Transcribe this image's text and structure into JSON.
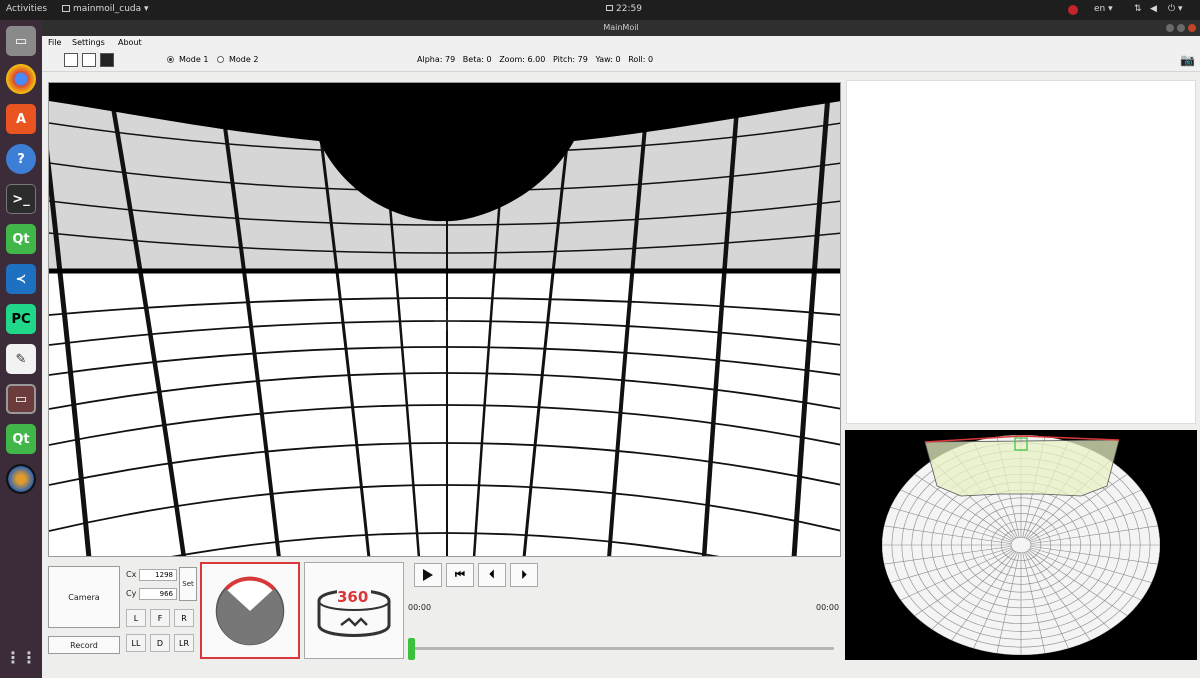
{
  "topbar": {
    "activities": "Activities",
    "app_menu": "mainmoil_cuda ▾",
    "clock": "22:59",
    "lang": "en ▾"
  },
  "window": {
    "title": "MainMoil"
  },
  "menu": {
    "file": "File",
    "settings": "Settings",
    "about": "About"
  },
  "toolbar": {
    "mode1_label": "Mode 1",
    "mode2_label": "Mode 2",
    "mode1_selected": true,
    "status_text": "Alpha: 79   Beta: 0   Zoom: 6.00   Pitch: 79   Yaw: 0   Roll: 0"
  },
  "controls": {
    "camera_label": "Camera",
    "record_label": "Record",
    "cx_label": "Cx",
    "cx_value": "1298",
    "cy_label": "Cy",
    "cy_value": "966",
    "set_label": "Set",
    "dir_buttons": [
      "L",
      "F",
      "R",
      "LL",
      "D",
      "LR"
    ],
    "panorama_label": "360"
  },
  "player": {
    "time_start": "00:00",
    "time_end": "00:00",
    "progress": 0.0
  },
  "colors": {
    "accent_red": "#d9383a",
    "progress_green": "#3cc13c",
    "fisheye_highlight": "#e8f2c4"
  },
  "icons": {
    "play": "play-icon",
    "skip_back": "skip-back-icon",
    "step_back": "step-back-icon",
    "step_forward": "step-forward-icon",
    "camera_snapshot": "camera-icon"
  }
}
